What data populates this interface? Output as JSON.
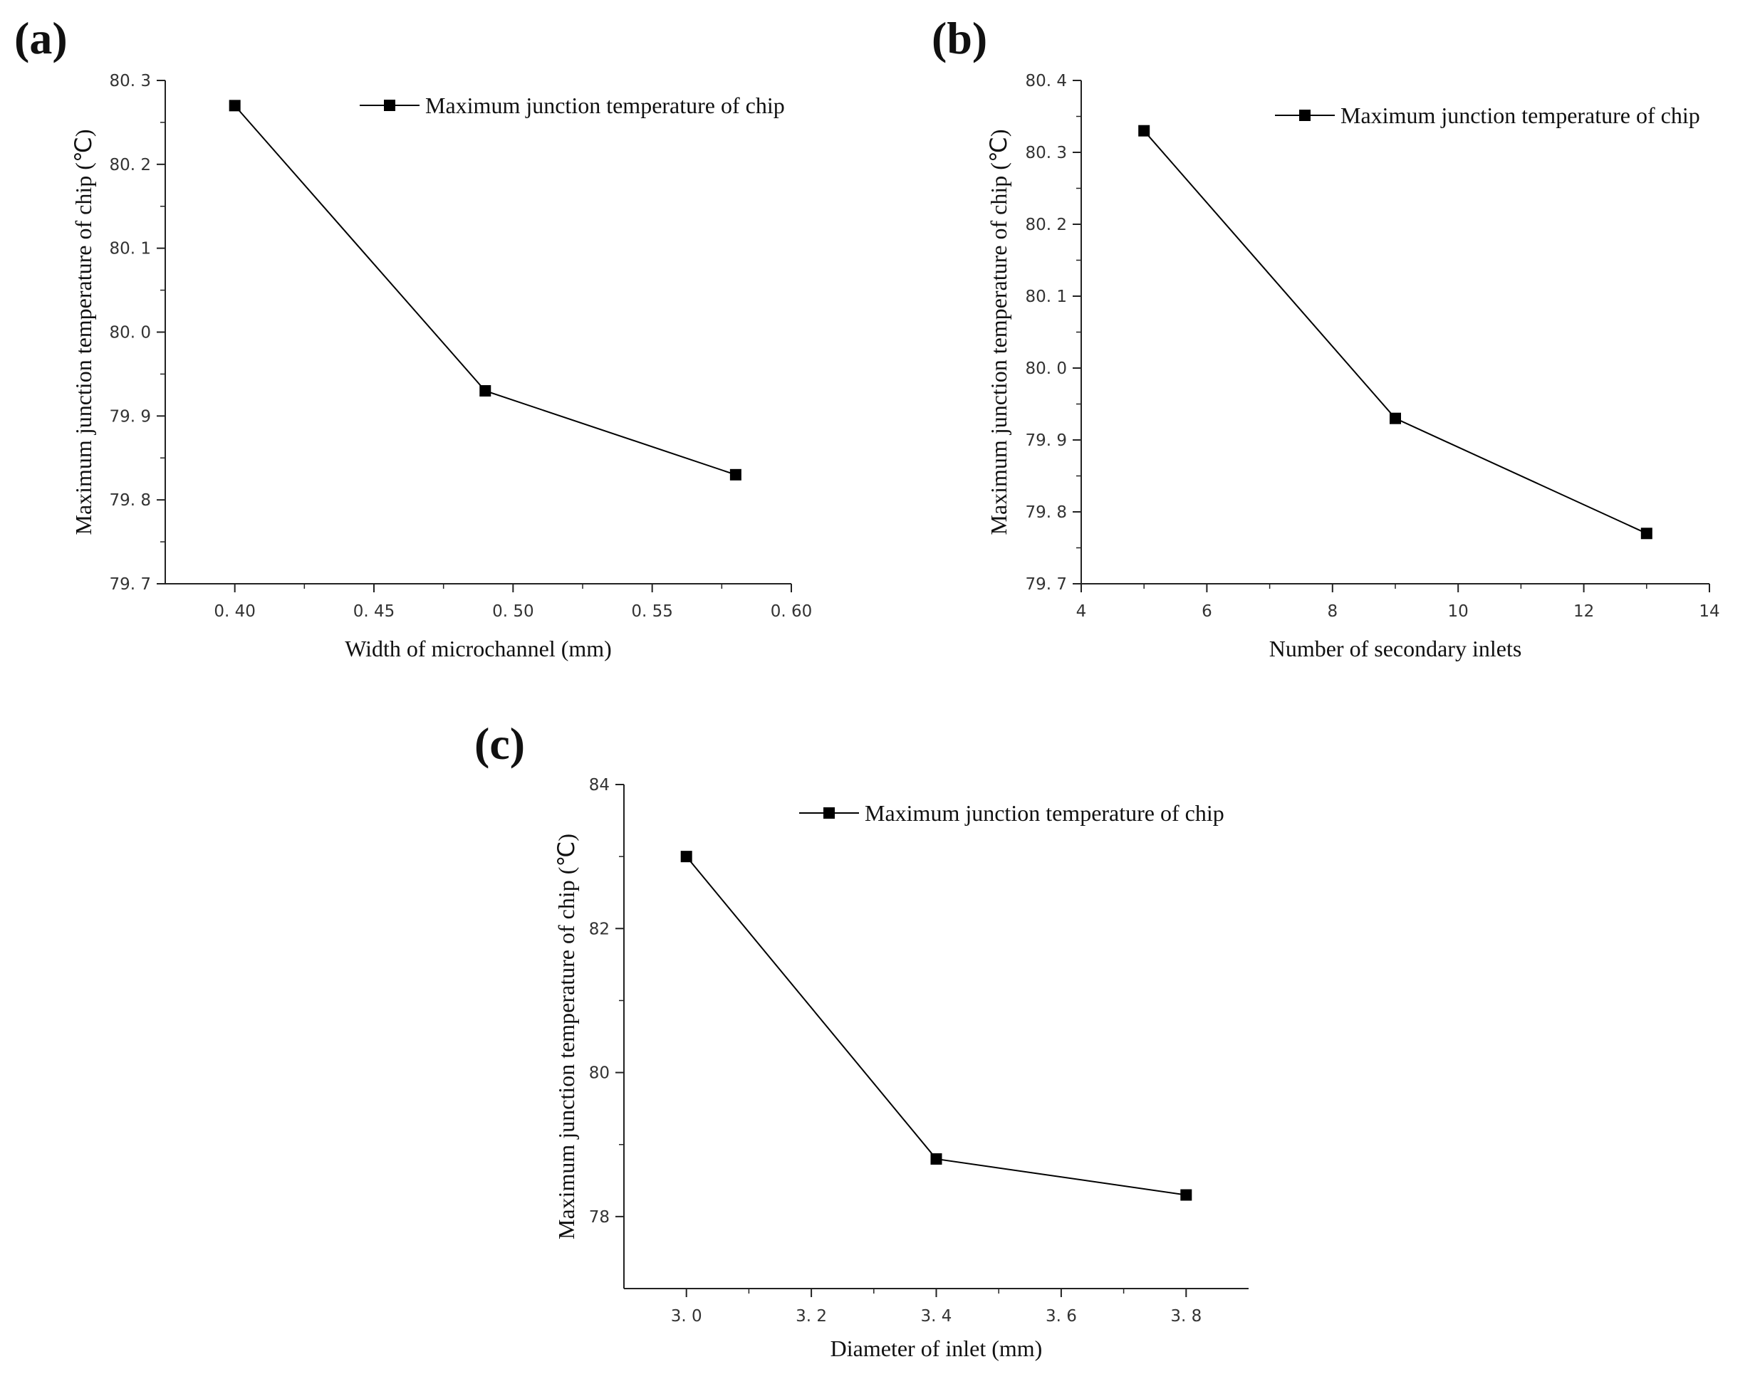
{
  "chart_data": [
    {
      "panel": "(a)",
      "type": "line",
      "xlabel": "Width of microchannel (mm)",
      "ylabel": "Maximum junction temperature of chip (℃)",
      "xlim": [
        0.375,
        0.6
      ],
      "ylim": [
        79.7,
        80.3
      ],
      "xticks": [
        "0. 40",
        "0. 45",
        "0. 50",
        "0. 55",
        "0. 60"
      ],
      "yticks": [
        "79. 7",
        "79. 8",
        "79. 9",
        "80. 0",
        "80. 1",
        "80. 2",
        "80. 3"
      ],
      "legend_position": "top-right",
      "grid": false,
      "series": [
        {
          "name": "Maximum junction temperature of chip",
          "marker": "square",
          "color": "#000000",
          "x": [
            0.4,
            0.49,
            0.58
          ],
          "y": [
            80.27,
            79.93,
            79.83
          ]
        }
      ]
    },
    {
      "panel": "(b)",
      "type": "line",
      "xlabel": "Number of secondary inlets",
      "ylabel": "Maximum junction temperature of chip (℃)",
      "xlim": [
        4,
        14
      ],
      "ylim": [
        79.7,
        80.4
      ],
      "xticks": [
        "4",
        "6",
        "8",
        "10",
        "12",
        "14"
      ],
      "yticks": [
        "79. 7",
        "79. 8",
        "79. 9",
        "80. 0",
        "80. 1",
        "80. 2",
        "80. 3",
        "80. 4"
      ],
      "legend_position": "top-right",
      "grid": false,
      "series": [
        {
          "name": "Maximum junction temperature of chip",
          "marker": "square",
          "color": "#000000",
          "x": [
            5,
            9,
            13
          ],
          "y": [
            80.33,
            79.93,
            79.77
          ]
        }
      ]
    },
    {
      "panel": "(c)",
      "type": "line",
      "xlabel": "Diameter of inlet (mm)",
      "ylabel": "Maximum junction temperature of chip (℃)",
      "xlim": [
        2.9,
        3.9
      ],
      "ylim": [
        77,
        84
      ],
      "xticks": [
        "3. 0",
        "3. 2",
        "3. 4",
        "3. 6",
        "3. 8"
      ],
      "yticks": [
        "78",
        "80",
        "82",
        "84"
      ],
      "legend_position": "top-right",
      "grid": false,
      "series": [
        {
          "name": "Maximum junction temperature of chip",
          "marker": "square",
          "color": "#000000",
          "x": [
            3.0,
            3.4,
            3.8
          ],
          "y": [
            83.0,
            78.8,
            78.3
          ]
        }
      ]
    }
  ]
}
